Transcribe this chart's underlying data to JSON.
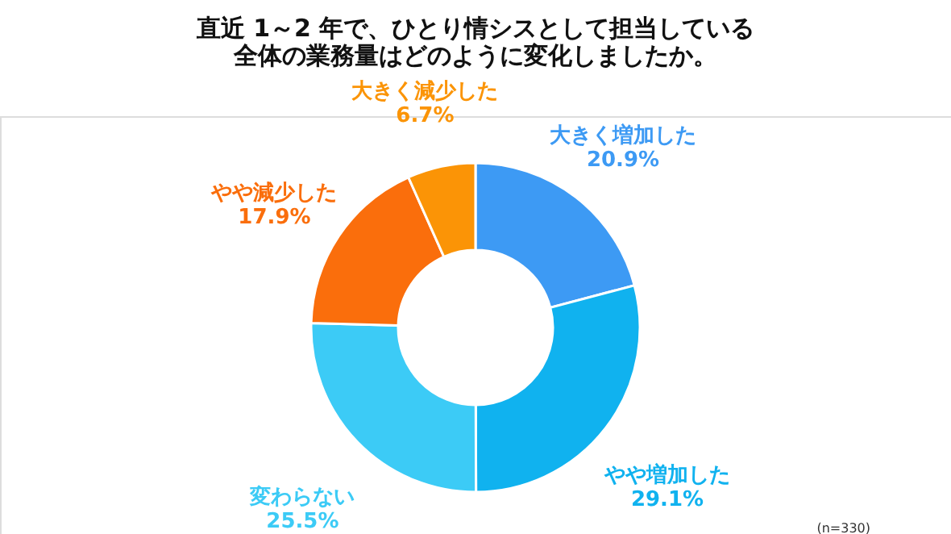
{
  "chart_data": {
    "type": "donut",
    "title": [
      "直近 1～2 年で、ひとり情シスとして担当している",
      "全体の業務量はどのように変化しましたか。"
    ],
    "categories": [
      "大きく増加した",
      "やや増加した",
      "変わらない",
      "やや減少した",
      "大きく減少した"
    ],
    "values": [
      20.9,
      29.1,
      25.5,
      17.9,
      6.7
    ],
    "value_labels": [
      "20.9%",
      "29.1%",
      "25.5%",
      "17.9%",
      "6.7%"
    ],
    "colors": [
      "#3d9af4",
      "#10b2ef",
      "#3ccbf6",
      "#fa6e0c",
      "#fb9406"
    ],
    "annotations": [
      "(n=330)"
    ],
    "legend": false
  }
}
